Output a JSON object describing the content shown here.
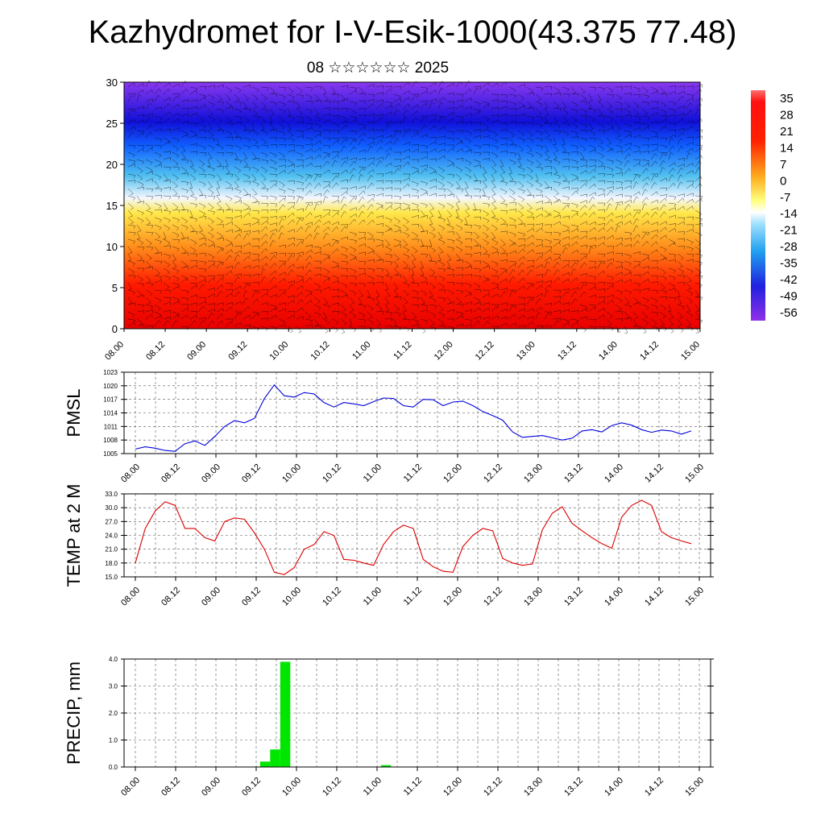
{
  "title": "Kazhydromet for I-V-Esik-1000(43.375 77.48)",
  "subtitle": "08 ☆☆☆☆☆☆ 2025",
  "x_tick_labels": [
    "08.00",
    "08.12",
    "09.00",
    "09.12",
    "10.00",
    "10.12",
    "11.00",
    "11.12",
    "12.00",
    "12.12",
    "13.00",
    "13.12",
    "14.00",
    "14.12",
    "15.00"
  ],
  "colors": {
    "pmsl_line": "#0000dd",
    "temp_line": "#dd0000",
    "precip_bar": "#00e600",
    "wind_barb": "#000000"
  },
  "chart_data": [
    {
      "type": "heatmap",
      "yticks": [
        "0",
        "5",
        "10",
        "15",
        "20",
        "25",
        "30"
      ],
      "ylim": [
        0,
        30
      ],
      "colorbar_labels": [
        "35",
        "28",
        "21",
        "14",
        "7",
        "0",
        "-7",
        "-14",
        "-21",
        "-28",
        "-35",
        "-42",
        "-49",
        "-56"
      ],
      "colormap": [
        "#ff0000",
        "#ff8000",
        "#ffe84a",
        "#ffffff",
        "#4ab8f0",
        "#1010e0",
        "#8030e8"
      ],
      "overlay": "wind barbs"
    },
    {
      "type": "line",
      "ylabel": "PMSL",
      "ylim": [
        1005,
        1023
      ],
      "yticks": [
        "1005",
        "1008",
        "1011",
        "1014",
        "1017",
        "1020",
        "1023"
      ],
      "values": [
        1006.0,
        1006.5,
        1006.2,
        1005.7,
        1005.5,
        1007.2,
        1007.8,
        1006.8,
        1008.8,
        1011.0,
        1012.3,
        1011.8,
        1012.8,
        1017.2,
        1020.2,
        1017.8,
        1017.5,
        1018.5,
        1018.2,
        1016.3,
        1015.3,
        1016.3,
        1016.0,
        1015.6,
        1016.5,
        1017.3,
        1017.2,
        1015.6,
        1015.3,
        1017.0,
        1016.9,
        1015.6,
        1016.4,
        1016.6,
        1015.6,
        1014.3,
        1013.4,
        1012.4,
        1009.8,
        1008.6,
        1008.8,
        1009.0,
        1008.5,
        1008.0,
        1008.4,
        1010.0,
        1010.3,
        1009.8,
        1011.2,
        1011.8,
        1011.3,
        1010.3,
        1009.7,
        1010.2,
        1010.0,
        1009.3,
        1010.0
      ]
    },
    {
      "type": "line",
      "ylabel": "TEMP at 2 M",
      "ylim": [
        15,
        33
      ],
      "yticks": [
        "15.0",
        "18.0",
        "21.0",
        "24.0",
        "27.0",
        "30.0",
        "33.0"
      ],
      "values": [
        18.0,
        25.5,
        29.3,
        31.3,
        30.5,
        25.5,
        25.5,
        23.5,
        22.8,
        27.0,
        27.8,
        27.5,
        24.5,
        21.0,
        16.0,
        15.5,
        17.0,
        21.0,
        22.0,
        24.8,
        24.0,
        18.8,
        18.6,
        18.0,
        17.5,
        22.0,
        24.8,
        26.2,
        25.5,
        18.8,
        17.2,
        16.2,
        16.0,
        21.6,
        24.0,
        25.5,
        25.0,
        19.0,
        18.0,
        17.5,
        17.8,
        25.2,
        28.8,
        30.2,
        26.6,
        25.0,
        23.5,
        22.2,
        21.2,
        28.0,
        30.5,
        31.6,
        30.5,
        24.8,
        23.5,
        22.8,
        22.2
      ]
    },
    {
      "type": "bar",
      "ylabel": "PRECIP, mm",
      "ylim": [
        0,
        4
      ],
      "yticks": [
        "0.0",
        "1.0",
        "2.0",
        "3.0",
        "4.0"
      ],
      "values": [
        0,
        0,
        0,
        0,
        0,
        0,
        0,
        0,
        0,
        0,
        0,
        0,
        0,
        0.2,
        0.65,
        3.9,
        0,
        0,
        0,
        0,
        0,
        0,
        0,
        0,
        0,
        0.07,
        0,
        0,
        0,
        0,
        0,
        0,
        0,
        0,
        0,
        0,
        0,
        0,
        0,
        0,
        0,
        0,
        0,
        0,
        0,
        0,
        0,
        0,
        0,
        0,
        0,
        0,
        0,
        0,
        0,
        0
      ]
    }
  ]
}
